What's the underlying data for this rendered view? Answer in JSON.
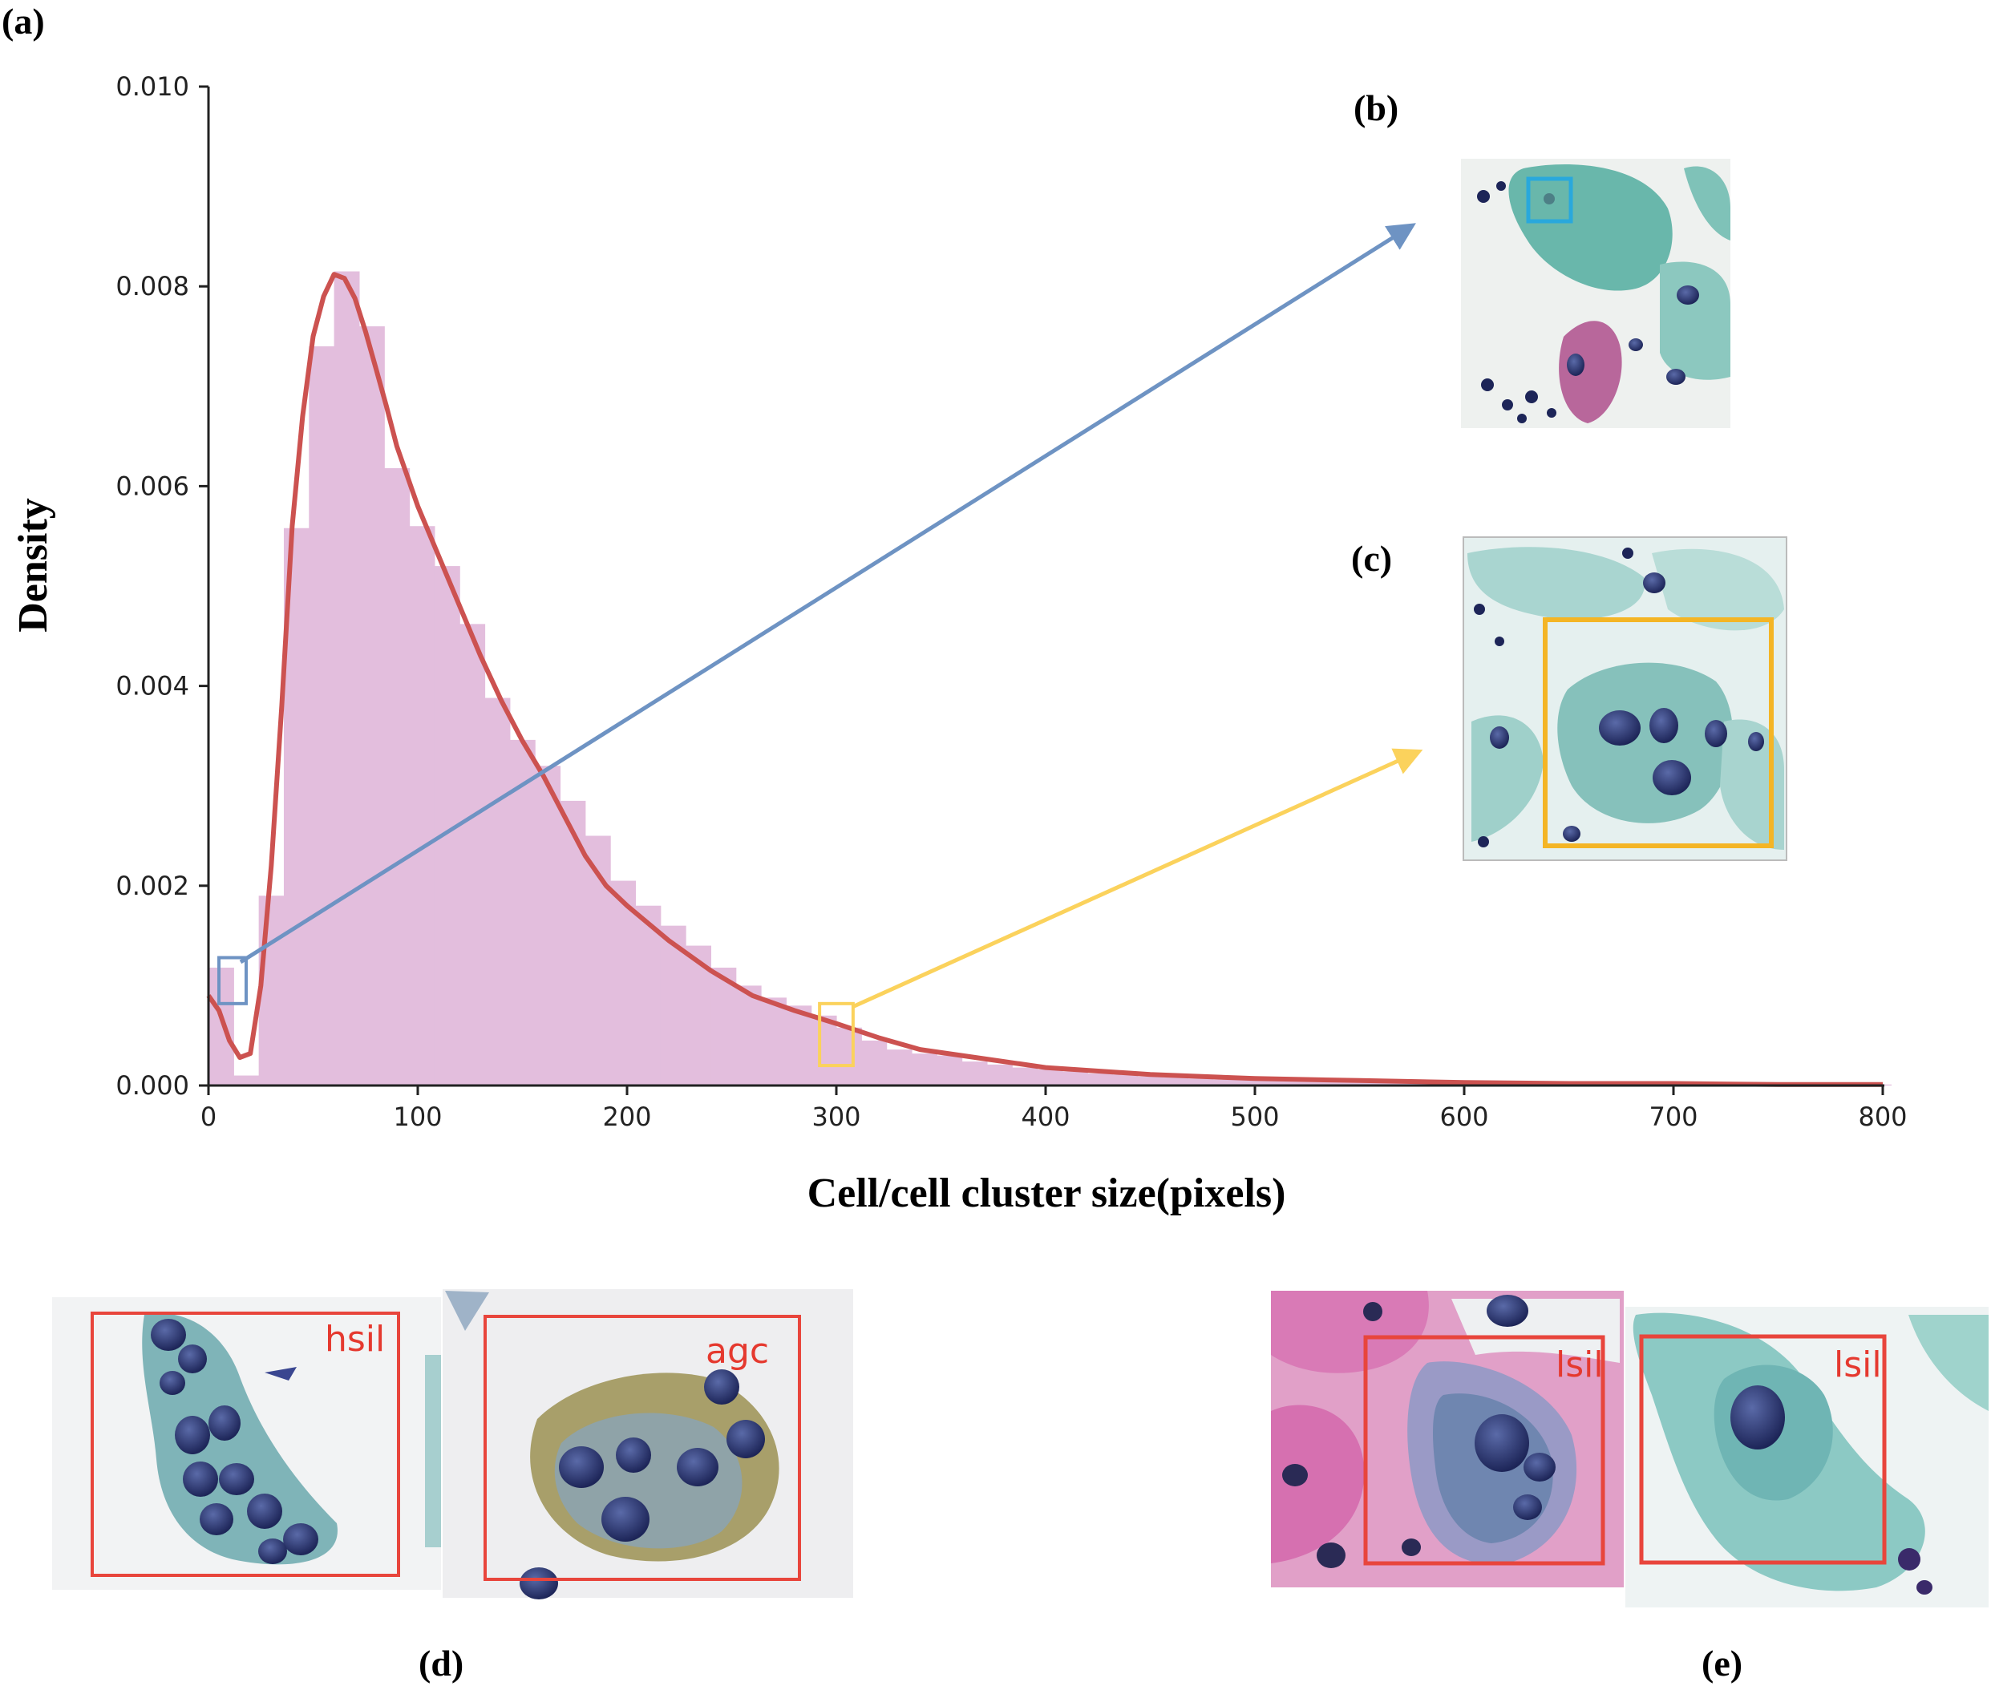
{
  "figure_labels": {
    "a": "(a)",
    "b": "(b)",
    "c": "(c)",
    "d": "(d)",
    "e": "(e)"
  },
  "chart_data": {
    "type": "bar",
    "subtype": "histogram with density curve",
    "xlabel": "Cell/cell cluster size(pixels)",
    "ylabel": "Density",
    "xlim": [
      0,
      800
    ],
    "ylim": [
      0,
      0.01
    ],
    "x_ticks": [
      0,
      100,
      200,
      300,
      400,
      500,
      600,
      700,
      800
    ],
    "y_ticks": [
      "0.000",
      "0.002",
      "0.004",
      "0.006",
      "0.008",
      "0.010"
    ],
    "bin_width": 12,
    "histogram": {
      "name": "histogram",
      "color": "#e3bedd",
      "bin_start": [
        0,
        12,
        24,
        36,
        48,
        60,
        72,
        84,
        96,
        108,
        120,
        132,
        144,
        156,
        168,
        180,
        192,
        204,
        216,
        228,
        240,
        252,
        264,
        276,
        288,
        300,
        312,
        324,
        336,
        348,
        360,
        372,
        384,
        396,
        408,
        420,
        432,
        444,
        456,
        468,
        480,
        492,
        504,
        516,
        528,
        540,
        552,
        564,
        576,
        588,
        600,
        612,
        624,
        636,
        648,
        660,
        672,
        684,
        696,
        708,
        720,
        732,
        744,
        756,
        768,
        780,
        792
      ],
      "values": [
        0.00118,
        0.0001,
        0.0019,
        0.00558,
        0.0074,
        0.00815,
        0.0076,
        0.00618,
        0.0056,
        0.0052,
        0.00462,
        0.00388,
        0.00346,
        0.0032,
        0.00285,
        0.0025,
        0.00205,
        0.0018,
        0.0016,
        0.0014,
        0.00118,
        0.001,
        0.00088,
        0.0008,
        0.0007,
        0.00058,
        0.00045,
        0.00036,
        0.00032,
        0.0003,
        0.00024,
        0.00021,
        0.00018,
        0.00016,
        0.00014,
        0.00012,
        0.00011,
        9e-05,
        8e-05,
        7e-05,
        6e-05,
        6e-05,
        5e-05,
        4e-05,
        4e-05,
        4e-05,
        3e-05,
        3e-05,
        3e-05,
        3e-05,
        2e-05,
        2e-05,
        2e-05,
        2e-05,
        2e-05,
        2e-05,
        1e-05,
        1e-05,
        1e-05,
        1e-05,
        1e-05,
        1e-05,
        1e-05,
        1e-05,
        1e-05,
        1e-05,
        1e-05
      ]
    },
    "density_curve": {
      "name": "kde",
      "color": "#cc5250",
      "x": [
        0,
        5,
        10,
        15,
        20,
        25,
        30,
        35,
        40,
        45,
        50,
        55,
        60,
        65,
        70,
        75,
        80,
        85,
        90,
        100,
        110,
        120,
        130,
        140,
        150,
        160,
        170,
        180,
        190,
        200,
        220,
        240,
        260,
        280,
        300,
        320,
        340,
        360,
        380,
        400,
        450,
        500,
        550,
        600,
        650,
        700,
        750,
        800
      ],
      "y": [
        0.0009,
        0.00075,
        0.00045,
        0.00028,
        0.00032,
        0.001,
        0.0022,
        0.0038,
        0.0056,
        0.0067,
        0.0075,
        0.0079,
        0.00812,
        0.00808,
        0.00788,
        0.00755,
        0.00718,
        0.0068,
        0.0064,
        0.0058,
        0.0053,
        0.0048,
        0.0043,
        0.00385,
        0.00345,
        0.0031,
        0.0027,
        0.0023,
        0.002,
        0.0018,
        0.00145,
        0.00115,
        0.0009,
        0.00075,
        0.00062,
        0.00048,
        0.00036,
        0.0003,
        0.00024,
        0.00018,
        0.00011,
        7e-05,
        5e-05,
        3e-05,
        2e-05,
        2e-05,
        1e-05,
        1e-05
      ]
    },
    "highlight_regions": [
      {
        "name": "small-cell-region",
        "x_range": [
          5,
          18
        ],
        "y_range": [
          0.00082,
          0.00128
        ],
        "color": "#6e93c3",
        "points_to": "(b)"
      },
      {
        "name": "mid-size-region",
        "x_range": [
          292,
          308
        ],
        "y_range": [
          0.0002,
          0.00082
        ],
        "color": "#fbd25c",
        "points_to": "(c)"
      }
    ]
  },
  "insets": {
    "b": {
      "description_box_color": "#29a8dc"
    },
    "c": {
      "description_box_color": "#f4b525"
    },
    "d": {
      "labels": [
        "hsil",
        "agc"
      ],
      "box_color": "#e8453c"
    },
    "e": {
      "labels": [
        "lsil",
        "lsil"
      ],
      "box_color": "#e8453c"
    }
  }
}
